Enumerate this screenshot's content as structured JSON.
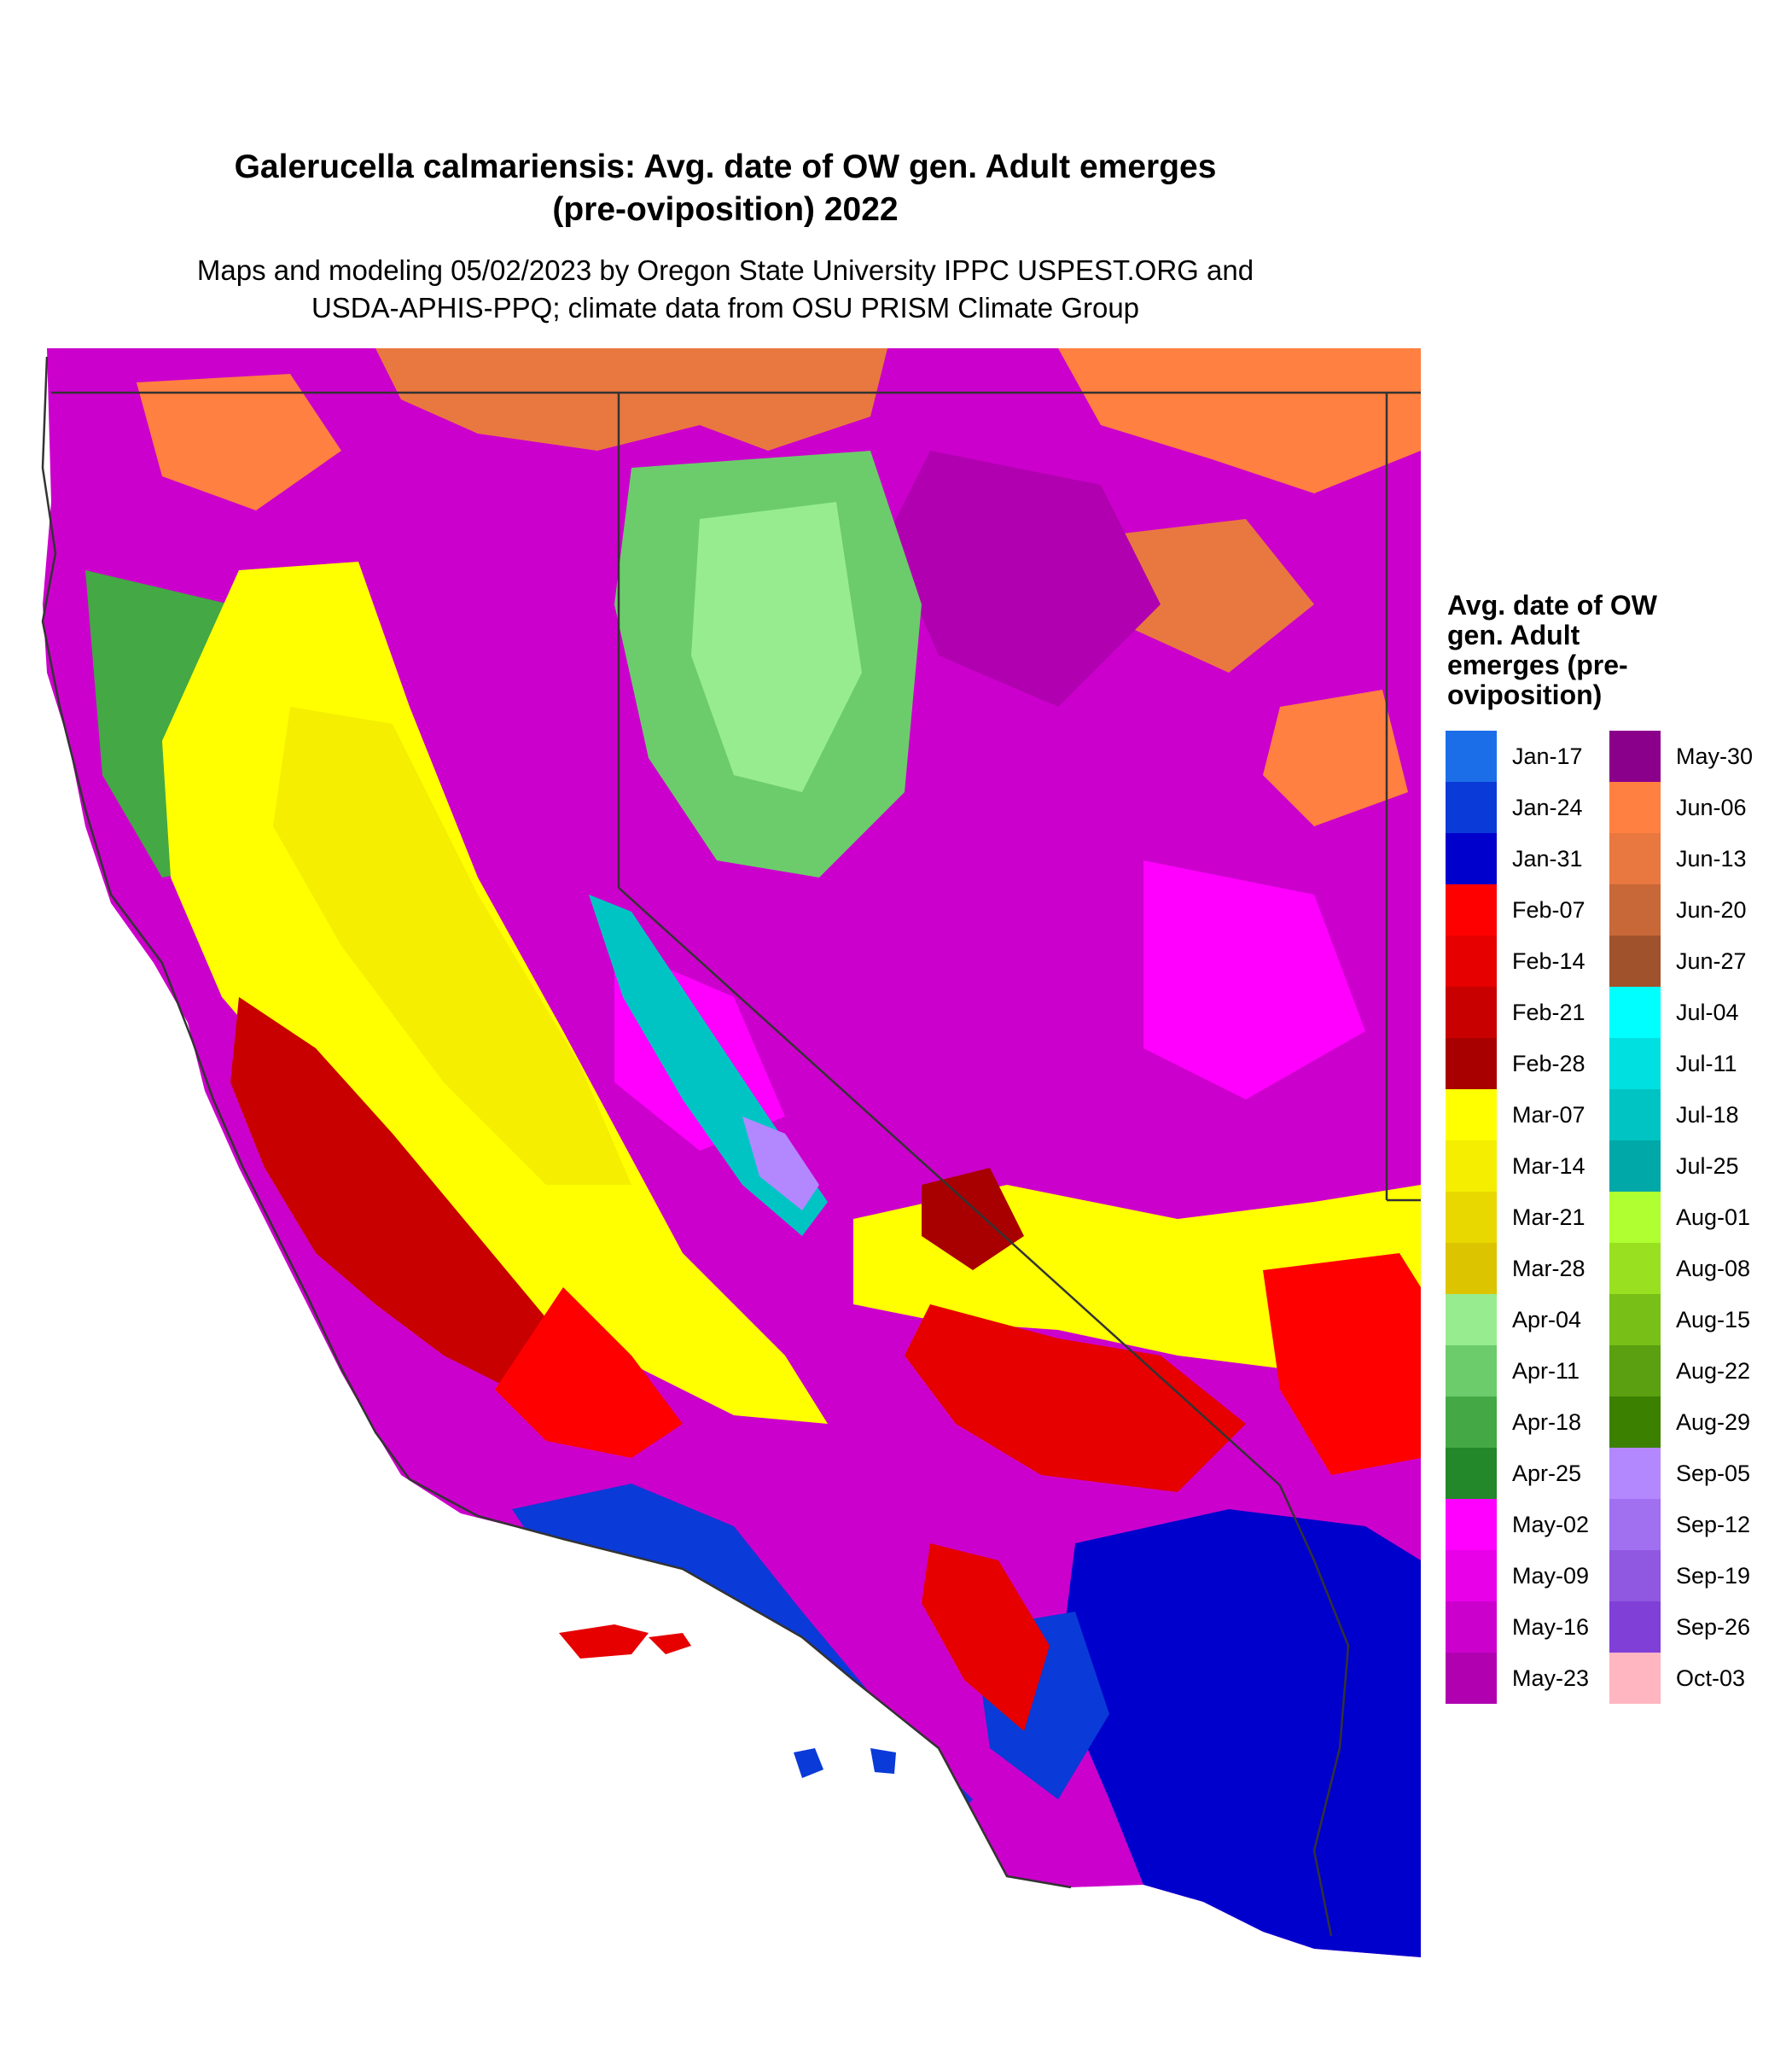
{
  "title": {
    "line1": "Galerucella calmariensis: Avg. date of OW gen. Adult emerges",
    "line2": "(pre-oviposition) 2022"
  },
  "subtitle": {
    "line1": "Maps and modeling 05/02/2023 by Oregon State University IPPC USPEST.ORG and",
    "line2": "USDA-APHIS-PPQ; climate data from OSU PRISM Climate Group"
  },
  "legend": {
    "title": "Avg. date of OW gen. Adult emerges (pre-oviposition)",
    "column1": [
      {
        "label": "Jan-17",
        "color": "#1c6ee8"
      },
      {
        "label": "Jan-24",
        "color": "#0a3ad8"
      },
      {
        "label": "Jan-31",
        "color": "#0000cc"
      },
      {
        "label": "Feb-07",
        "color": "#ff0000"
      },
      {
        "label": "Feb-14",
        "color": "#e60000"
      },
      {
        "label": "Feb-21",
        "color": "#c80000"
      },
      {
        "label": "Feb-28",
        "color": "#a80000"
      },
      {
        "label": "Mar-07",
        "color": "#ffff00"
      },
      {
        "label": "Mar-14",
        "color": "#f5ee00"
      },
      {
        "label": "Mar-21",
        "color": "#e8d800"
      },
      {
        "label": "Mar-28",
        "color": "#dcc400"
      },
      {
        "label": "Apr-04",
        "color": "#98ec90"
      },
      {
        "label": "Apr-11",
        "color": "#6ccc6c"
      },
      {
        "label": "Apr-18",
        "color": "#44a844"
      },
      {
        "label": "Apr-25",
        "color": "#22882a"
      },
      {
        "label": "May-02",
        "color": "#ff00ff"
      },
      {
        "label": "May-09",
        "color": "#e800e8"
      },
      {
        "label": "May-16",
        "color": "#cc00cc"
      },
      {
        "label": "May-23",
        "color": "#b000b0"
      }
    ],
    "column2": [
      {
        "label": "May-30",
        "color": "#8b008b"
      },
      {
        "label": "Jun-06",
        "color": "#ff8040"
      },
      {
        "label": "Jun-13",
        "color": "#e87840"
      },
      {
        "label": "Jun-20",
        "color": "#c86838"
      },
      {
        "label": "Jun-27",
        "color": "#a0522d"
      },
      {
        "label": "Jul-04",
        "color": "#00ffff"
      },
      {
        "label": "Jul-11",
        "color": "#00e0e0"
      },
      {
        "label": "Jul-18",
        "color": "#00c4c4"
      },
      {
        "label": "Jul-25",
        "color": "#00a8a8"
      },
      {
        "label": "Aug-01",
        "color": "#b0ff30"
      },
      {
        "label": "Aug-08",
        "color": "#98e020"
      },
      {
        "label": "Aug-15",
        "color": "#78c018"
      },
      {
        "label": "Aug-22",
        "color": "#5aa010"
      },
      {
        "label": "Aug-29",
        "color": "#3c8000"
      },
      {
        "label": "Sep-05",
        "color": "#b388ff"
      },
      {
        "label": "Sep-12",
        "color": "#a070f0"
      },
      {
        "label": "Sep-19",
        "color": "#9058e0"
      },
      {
        "label": "Sep-26",
        "color": "#8040d8"
      },
      {
        "label": "Oct-03",
        "color": "#ffb6c1"
      }
    ]
  }
}
